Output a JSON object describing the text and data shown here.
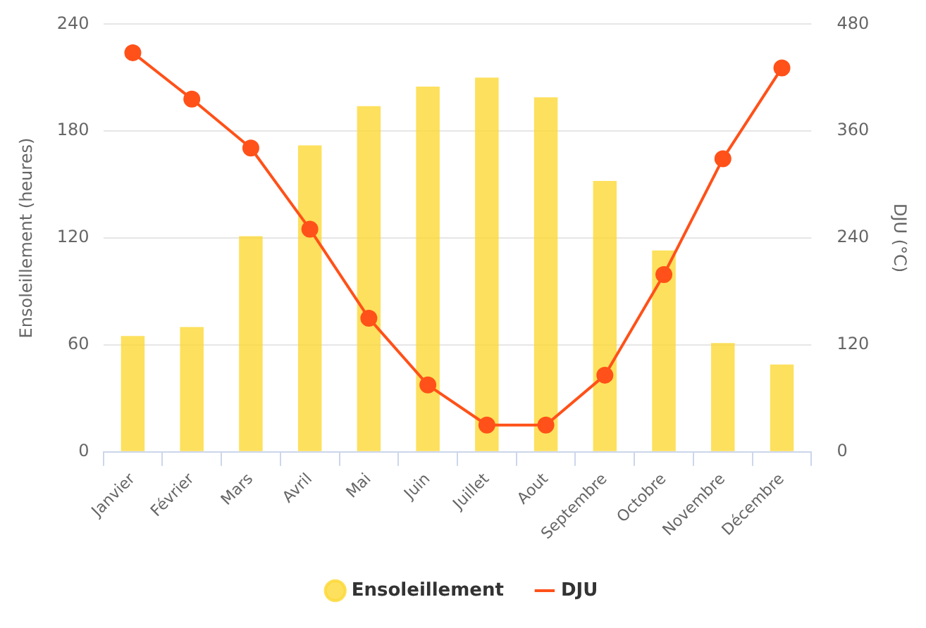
{
  "chart_data": {
    "type": "bar",
    "categories": [
      "Janvier",
      "Février",
      "Mars",
      "Avril",
      "Mai",
      "Juin",
      "Juillet",
      "Aout",
      "Septembre",
      "Octobre",
      "Novembre",
      "Décembre"
    ],
    "series": [
      {
        "name": "Ensoleillement",
        "color": "#fdd835",
        "values": [
          65,
          70,
          121,
          172,
          194,
          205,
          210,
          199,
          152,
          113,
          61,
          49
        ]
      },
      {
        "name": "DJU",
        "type": "line",
        "axis": "y2",
        "color": "#ff5119",
        "values": [
          448,
          396,
          341,
          250,
          150,
          75,
          30,
          30,
          86,
          199,
          329,
          431
        ]
      }
    ],
    "ylabel": "Ensoleillement (heures)",
    "y2label": "DJU (°C)",
    "ylim": [
      0,
      240
    ],
    "yticks": [
      0,
      60,
      120,
      180,
      240
    ],
    "y2lim": [
      0,
      480
    ],
    "y2ticks": [
      0,
      120,
      240,
      360,
      480
    ],
    "grid": "y",
    "legend": "bottom",
    "marker": "circle"
  }
}
